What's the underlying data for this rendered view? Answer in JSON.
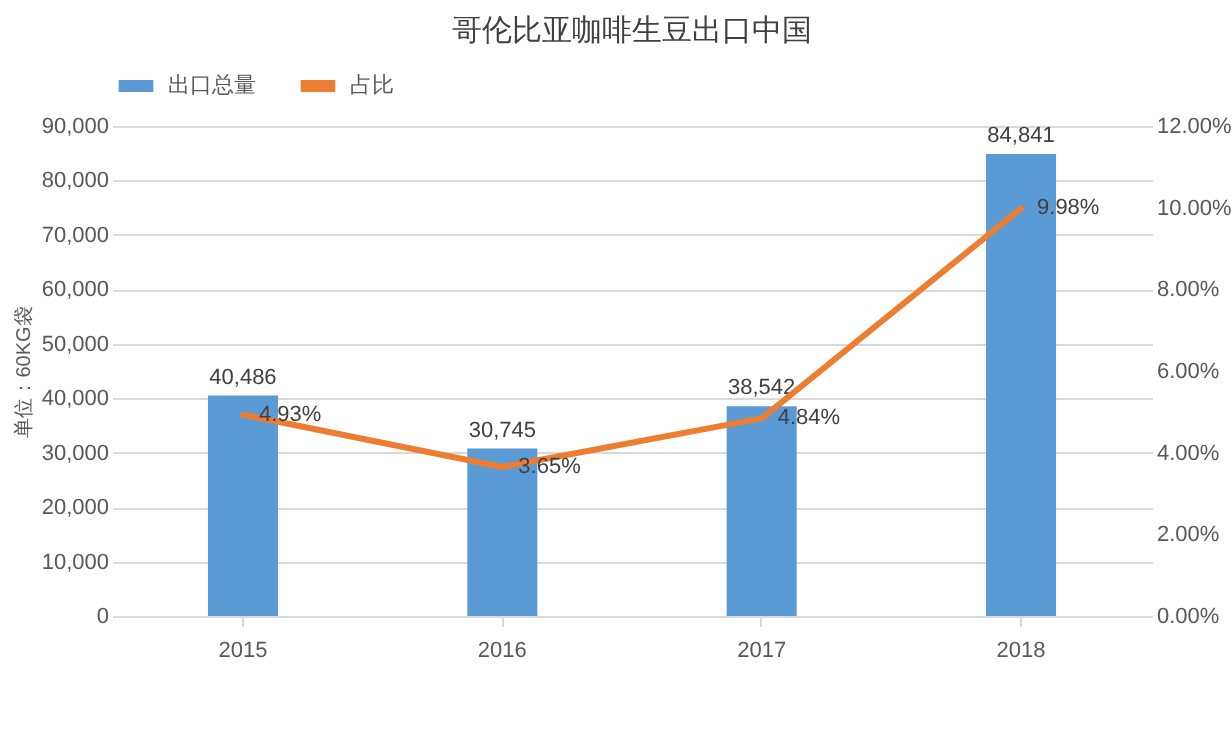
{
  "chart_data": {
    "type": "bar",
    "title": "哥伦比亚咖啡生豆出口中国",
    "ylabel": "单位：60KG袋",
    "categories": [
      "2015",
      "2016",
      "2017",
      "2018"
    ],
    "series": [
      {
        "name": "出口总量",
        "color": "#5b9bd5",
        "values": [
          40486,
          30745,
          38542,
          84841
        ],
        "value_labels": [
          "40,486",
          "30,745",
          "38,542",
          "84,841"
        ]
      },
      {
        "name": "占比",
        "type": "line",
        "axis": "y2",
        "color": "#ed7d31",
        "values": [
          4.93,
          3.65,
          4.84,
          9.98
        ],
        "value_labels": [
          "4.93%",
          "3.65%",
          "4.84%",
          "9.98%"
        ]
      }
    ],
    "ylim": [
      0,
      90000
    ],
    "yticks": [
      {
        "value": 0,
        "label": "0"
      },
      {
        "value": 10000,
        "label": "10,000"
      },
      {
        "value": 20000,
        "label": "20,000"
      },
      {
        "value": 30000,
        "label": "30,000"
      },
      {
        "value": 40000,
        "label": "40,000"
      },
      {
        "value": 50000,
        "label": "50,000"
      },
      {
        "value": 60000,
        "label": "60,000"
      },
      {
        "value": 70000,
        "label": "70,000"
      },
      {
        "value": 80000,
        "label": "80,000"
      },
      {
        "value": 90000,
        "label": "90,000"
      }
    ],
    "y2lim": [
      0,
      12
    ],
    "y2ticks": [
      {
        "value": 0,
        "label": "0.00%"
      },
      {
        "value": 2,
        "label": "2.00%"
      },
      {
        "value": 4,
        "label": "4.00%"
      },
      {
        "value": 6,
        "label": "6.00%"
      },
      {
        "value": 8,
        "label": "8.00%"
      },
      {
        "value": 10,
        "label": "10.00%"
      },
      {
        "value": 12,
        "label": "12.00%"
      }
    ],
    "grid": "y",
    "legend": "top"
  }
}
